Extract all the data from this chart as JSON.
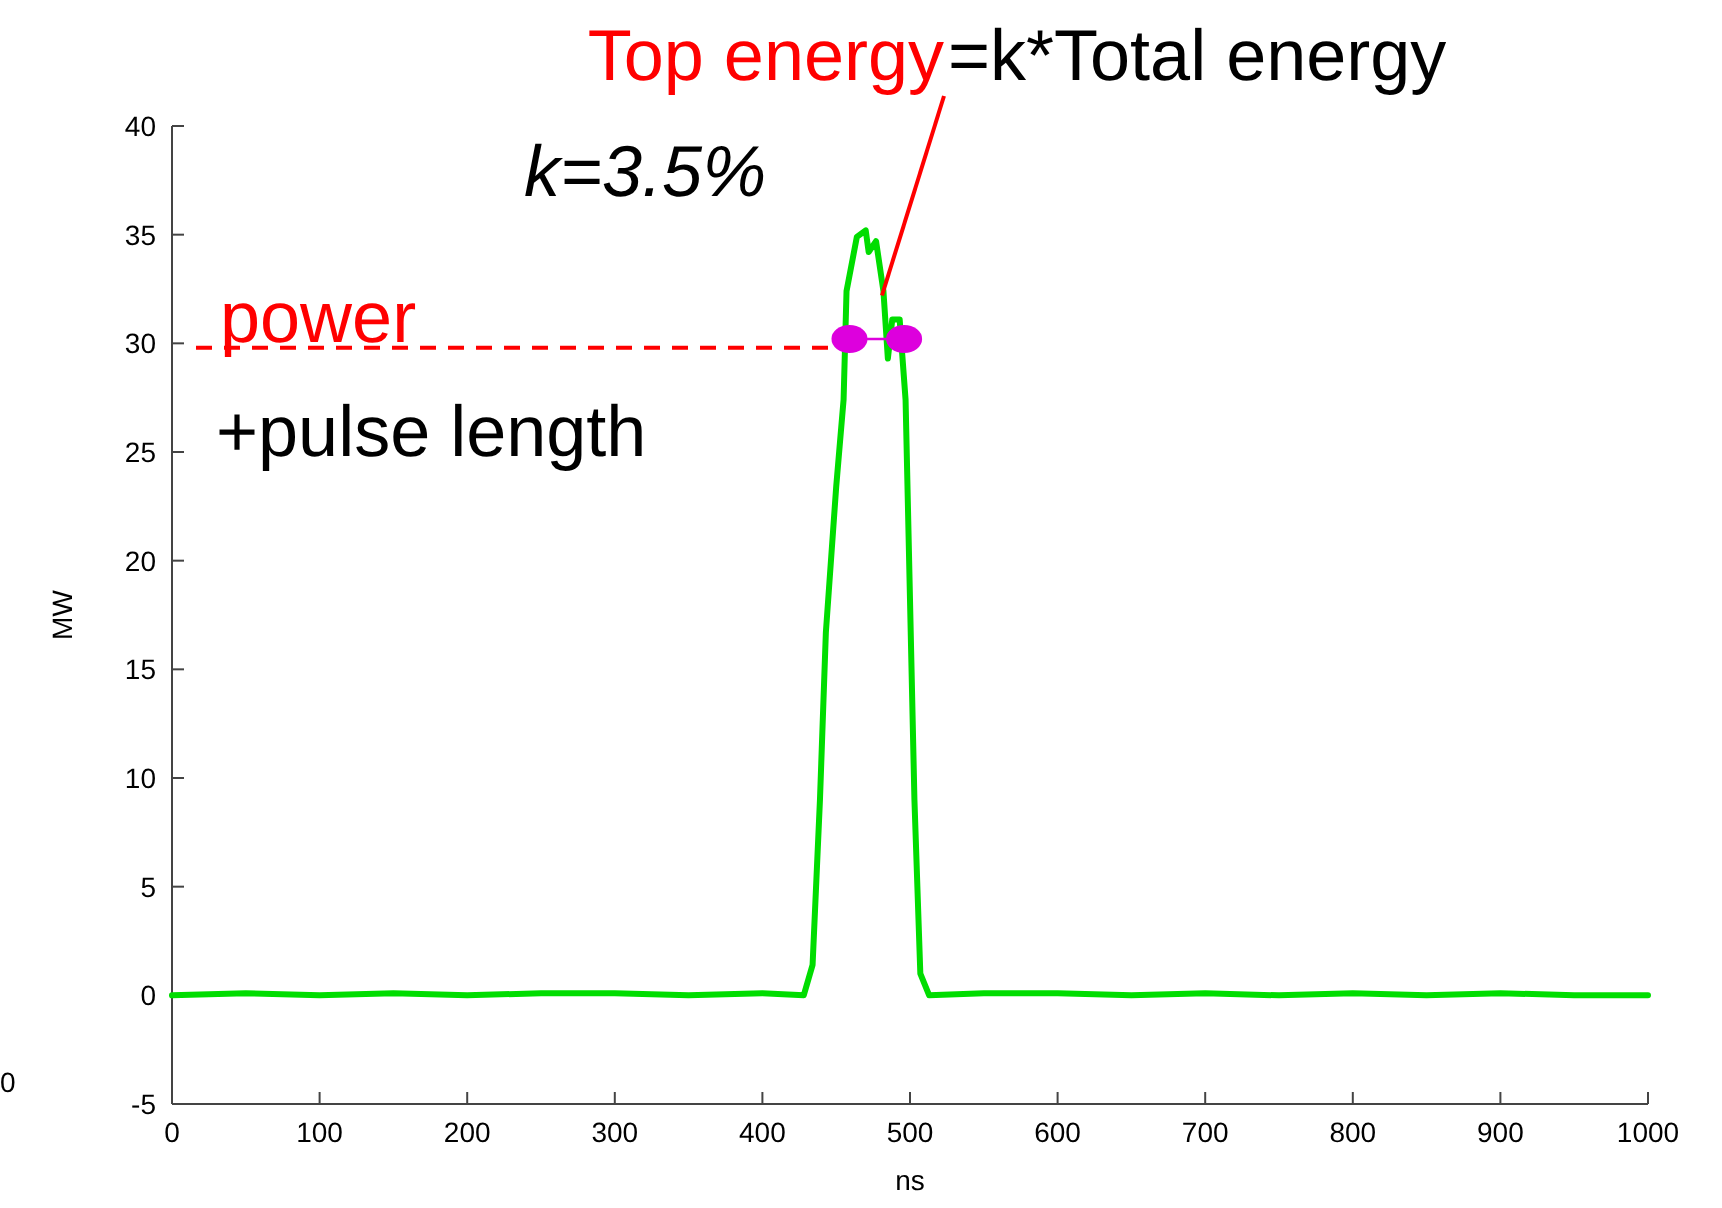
{
  "chart_data": {
    "type": "line",
    "xlabel": "ns",
    "ylabel": "MW",
    "xlim": [
      0,
      1000
    ],
    "xticks": [
      0,
      100,
      200,
      300,
      400,
      500,
      600,
      700,
      800,
      900,
      1000
    ],
    "ylim": [
      -5,
      40
    ],
    "yticks": [
      -5,
      0,
      5,
      10,
      15,
      20,
      25,
      30,
      35,
      40
    ],
    "grid": false,
    "line_style": "solid",
    "series": [
      {
        "color": "#00dd00",
        "marker": "none",
        "x": [
          0,
          50,
          100,
          150,
          200,
          250,
          300,
          350,
          400,
          428,
          434,
          439,
          443,
          450,
          455,
          457,
          464,
          470,
          472,
          477,
          482,
          485,
          488,
          493,
          497,
          500,
          503,
          507,
          513,
          550,
          600,
          650,
          700,
          750,
          800,
          850,
          900,
          950,
          1000
        ],
        "values": [
          0,
          0.1,
          0,
          0.1,
          0,
          0.1,
          0.1,
          0,
          0.1,
          0,
          1.4,
          9,
          16.7,
          23.4,
          27.4,
          32.4,
          34.9,
          35.2,
          34.2,
          34.7,
          32.4,
          29.3,
          31.1,
          31.1,
          27.4,
          18.2,
          9,
          1,
          0,
          0.1,
          0.1,
          0,
          0.1,
          0,
          0.1,
          0,
          0.1,
          0,
          0
        ]
      },
      {
        "color": "#dd00dd",
        "marker": "circle",
        "x": [
          459,
          496
        ],
        "values": [
          30.2,
          30.2
        ]
      }
    ],
    "ref_lines": [
      {
        "axis": "y",
        "value": 29.8,
        "label": "power",
        "color": "#ff0000",
        "line_style": "dashed"
      }
    ],
    "annotations": [
      {
        "text": "Top energy",
        "x": 481,
        "y": 32.2
      },
      "=k*Total energy",
      "k=3.5%",
      "+pulse length",
      "0"
    ]
  }
}
